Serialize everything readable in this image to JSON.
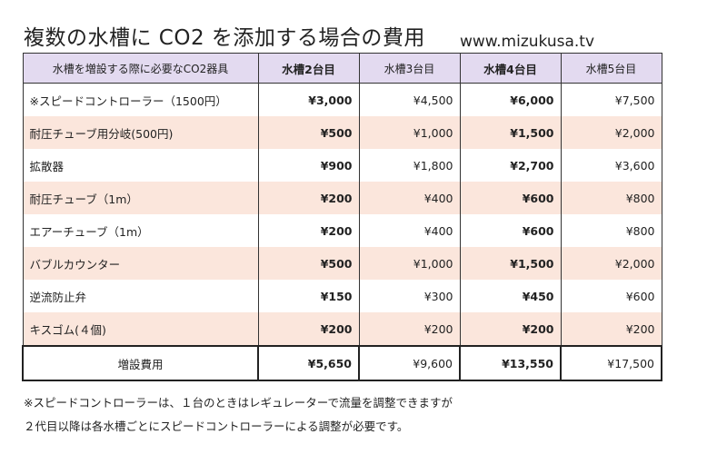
{
  "title": "複数の水槽に CO2 を添加する場合の費用",
  "site": "www.mizukusa.tv",
  "table": {
    "headers": [
      "水槽を増設する際に必要なCO2器具",
      "水槽2台目",
      "水槽3台目",
      "水槽4台目",
      "水槽5台目"
    ],
    "rows": [
      {
        "item": "※スピードコントローラー（1500円）",
        "v2": "¥3,000",
        "v3": "¥4,500",
        "v4": "¥6,000",
        "v5": "¥7,500"
      },
      {
        "item": "耐圧チューブ用分岐(500円)",
        "v2": "¥500",
        "v3": "¥1,000",
        "v4": "¥1,500",
        "v5": "¥2,000"
      },
      {
        "item": "拡散器",
        "v2": "¥900",
        "v3": "¥1,800",
        "v4": "¥2,700",
        "v5": "¥3,600"
      },
      {
        "item": "耐圧チューブ（1m）",
        "v2": "¥200",
        "v3": "¥400",
        "v4": "¥600",
        "v5": "¥800"
      },
      {
        "item": "エアーチューブ（1m）",
        "v2": "¥200",
        "v3": "¥400",
        "v4": "¥600",
        "v5": "¥800"
      },
      {
        "item": "バブルカウンター",
        "v2": "¥500",
        "v3": "¥1,000",
        "v4": "¥1,500",
        "v5": "¥2,000"
      },
      {
        "item": "逆流防止弁",
        "v2": "¥150",
        "v3": "¥300",
        "v4": "¥450",
        "v5": "¥600"
      },
      {
        "item": "キスゴム(４個)",
        "v2": "¥200",
        "v3": "¥200",
        "v4": "¥200",
        "v5": "¥200"
      }
    ],
    "total": {
      "label": "増設費用",
      "v2": "¥5,650",
      "v3": "¥9,600",
      "v4": "¥13,550",
      "v5": "¥17,500"
    }
  },
  "notes": [
    "※スピードコントローラーは、１台のときはレギュレーターで流量を調整できますが",
    "２代目以降は各水槽ごとにスピードコントローラーによる調整が必要です。"
  ],
  "colors": {
    "header_bg": "#e3daf0",
    "alt_row_bg": "#fbe6dc"
  }
}
